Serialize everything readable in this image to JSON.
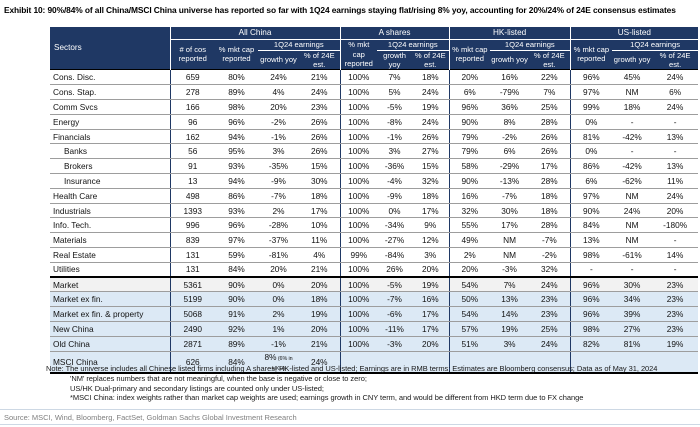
{
  "title": "Exhibit 10: 90%/84% of all China/MSCI China universe has reported so far with 1Q24 earnings staying flat/rising 8% yoy, accounting for 20%/24% of 24E consensus estimates",
  "colors": {
    "header_navy": "#1F3864",
    "highlight_blue": "#DCE9F5",
    "highlight_gray": "#F2F2F2"
  },
  "table": {
    "corner_label": "Sectors",
    "groups": [
      {
        "label": "All China"
      },
      {
        "label": "A shares"
      },
      {
        "label": "HK-listed"
      },
      {
        "label": "US-listed"
      }
    ],
    "col_labels": {
      "num_cos": "# of cos reported",
      "mkt_cap": "% mkt cap reported",
      "earnings": "1Q24 earnings",
      "growth": "growth yoy",
      "pct_24e": "% of 24E est."
    },
    "rows": [
      {
        "sector": "Cons. Disc.",
        "values": [
          "659",
          "80%",
          "24%",
          "21%",
          "100%",
          "7%",
          "18%",
          "20%",
          "16%",
          "22%",
          "96%",
          "45%",
          "24%"
        ]
      },
      {
        "sector": "Cons. Stap.",
        "values": [
          "278",
          "89%",
          "4%",
          "24%",
          "100%",
          "5%",
          "24%",
          "6%",
          "-79%",
          "7%",
          "97%",
          "NM",
          "6%"
        ]
      },
      {
        "sector": "Comm Svcs",
        "values": [
          "166",
          "98%",
          "20%",
          "23%",
          "100%",
          "-5%",
          "19%",
          "96%",
          "36%",
          "25%",
          "99%",
          "18%",
          "24%"
        ]
      },
      {
        "sector": "Energy",
        "values": [
          "96",
          "96%",
          "-2%",
          "26%",
          "100%",
          "-8%",
          "24%",
          "90%",
          "8%",
          "28%",
          "0%",
          "-",
          "-"
        ]
      },
      {
        "sector": "Financials",
        "values": [
          "162",
          "94%",
          "-1%",
          "26%",
          "100%",
          "-1%",
          "26%",
          "79%",
          "-2%",
          "26%",
          "81%",
          "-42%",
          "13%"
        ]
      },
      {
        "sector": "Banks",
        "indent": true,
        "values": [
          "56",
          "95%",
          "3%",
          "26%",
          "100%",
          "3%",
          "27%",
          "79%",
          "6%",
          "26%",
          "0%",
          "-",
          "-"
        ]
      },
      {
        "sector": "Brokers",
        "indent": true,
        "values": [
          "91",
          "93%",
          "-35%",
          "15%",
          "100%",
          "-36%",
          "15%",
          "58%",
          "-29%",
          "17%",
          "86%",
          "-42%",
          "13%"
        ]
      },
      {
        "sector": "Insurance",
        "indent": true,
        "values": [
          "13",
          "94%",
          "-9%",
          "30%",
          "100%",
          "-4%",
          "32%",
          "90%",
          "-13%",
          "28%",
          "6%",
          "-62%",
          "11%"
        ]
      },
      {
        "sector": "Health Care",
        "values": [
          "498",
          "86%",
          "-7%",
          "18%",
          "100%",
          "-9%",
          "18%",
          "16%",
          "-7%",
          "18%",
          "97%",
          "NM",
          "24%"
        ]
      },
      {
        "sector": "Industrials",
        "values": [
          "1393",
          "93%",
          "2%",
          "17%",
          "100%",
          "0%",
          "17%",
          "32%",
          "30%",
          "18%",
          "90%",
          "24%",
          "20%"
        ]
      },
      {
        "sector": "Info. Tech.",
        "values": [
          "996",
          "96%",
          "-28%",
          "10%",
          "100%",
          "-34%",
          "9%",
          "55%",
          "17%",
          "28%",
          "84%",
          "NM",
          "-180%"
        ]
      },
      {
        "sector": "Materials",
        "values": [
          "839",
          "97%",
          "-37%",
          "11%",
          "100%",
          "-27%",
          "12%",
          "49%",
          "NM",
          "-7%",
          "13%",
          "NM",
          "-"
        ]
      },
      {
        "sector": "Real Estate",
        "values": [
          "131",
          "59%",
          "-81%",
          "4%",
          "99%",
          "-84%",
          "3%",
          "2%",
          "NM",
          "-2%",
          "98%",
          "-61%",
          "14%"
        ]
      },
      {
        "sector": "Utilities",
        "values": [
          "131",
          "84%",
          "20%",
          "21%",
          "100%",
          "26%",
          "20%",
          "20%",
          "-3%",
          "32%",
          "-",
          "-",
          "-"
        ]
      },
      {
        "sector": "Market",
        "style": "gray",
        "values": [
          "5361",
          "90%",
          "0%",
          "20%",
          "100%",
          "-5%",
          "19%",
          "54%",
          "7%",
          "24%",
          "96%",
          "30%",
          "23%"
        ]
      },
      {
        "sector": "Market ex fin.",
        "style": "blue",
        "values": [
          "5199",
          "90%",
          "0%",
          "18%",
          "100%",
          "-7%",
          "16%",
          "50%",
          "13%",
          "23%",
          "96%",
          "34%",
          "23%"
        ]
      },
      {
        "sector": "Market ex fin. & property",
        "style": "blue",
        "values": [
          "5068",
          "91%",
          "2%",
          "19%",
          "100%",
          "-6%",
          "17%",
          "54%",
          "14%",
          "23%",
          "96%",
          "39%",
          "23%"
        ]
      },
      {
        "sector": "New China",
        "style": "blue",
        "values": [
          "2490",
          "92%",
          "1%",
          "20%",
          "100%",
          "-11%",
          "17%",
          "57%",
          "19%",
          "25%",
          "98%",
          "27%",
          "23%"
        ]
      },
      {
        "sector": "Old China",
        "style": "blue",
        "values": [
          "2871",
          "89%",
          "-1%",
          "21%",
          "100%",
          "-3%",
          "20%",
          "51%",
          "3%",
          "24%",
          "82%",
          "81%",
          "19%"
        ]
      },
      {
        "sector": "MSCI China",
        "style": "blue msci",
        "values": [
          "626",
          "84%",
          "8%",
          "24%",
          "",
          "",
          "",
          "",
          "",
          "",
          "",
          "",
          ""
        ],
        "growth_note": "(6% in HKD)"
      }
    ]
  },
  "notes": [
    "Note: The universe includes all Chinese listed firms including A shares, HK-listed and US-listed; Earnings are in RMB terms; Estimates are Bloomberg consensus; Data as of May 31, 2024",
    "'NM' replaces numbers that are not meaningful, when the base is negative or close to zero;",
    "US/HK Dual-primary and secondary listings are counted only under US-listed;",
    "*MSCI China: index weights rather than market cap weights are used; earnings growth in CNY term, and would be different from HKD term due to FX change"
  ],
  "source": "Source: MSCI, Wind, Bloomberg, FactSet, Goldman Sachs Global Investment Research"
}
